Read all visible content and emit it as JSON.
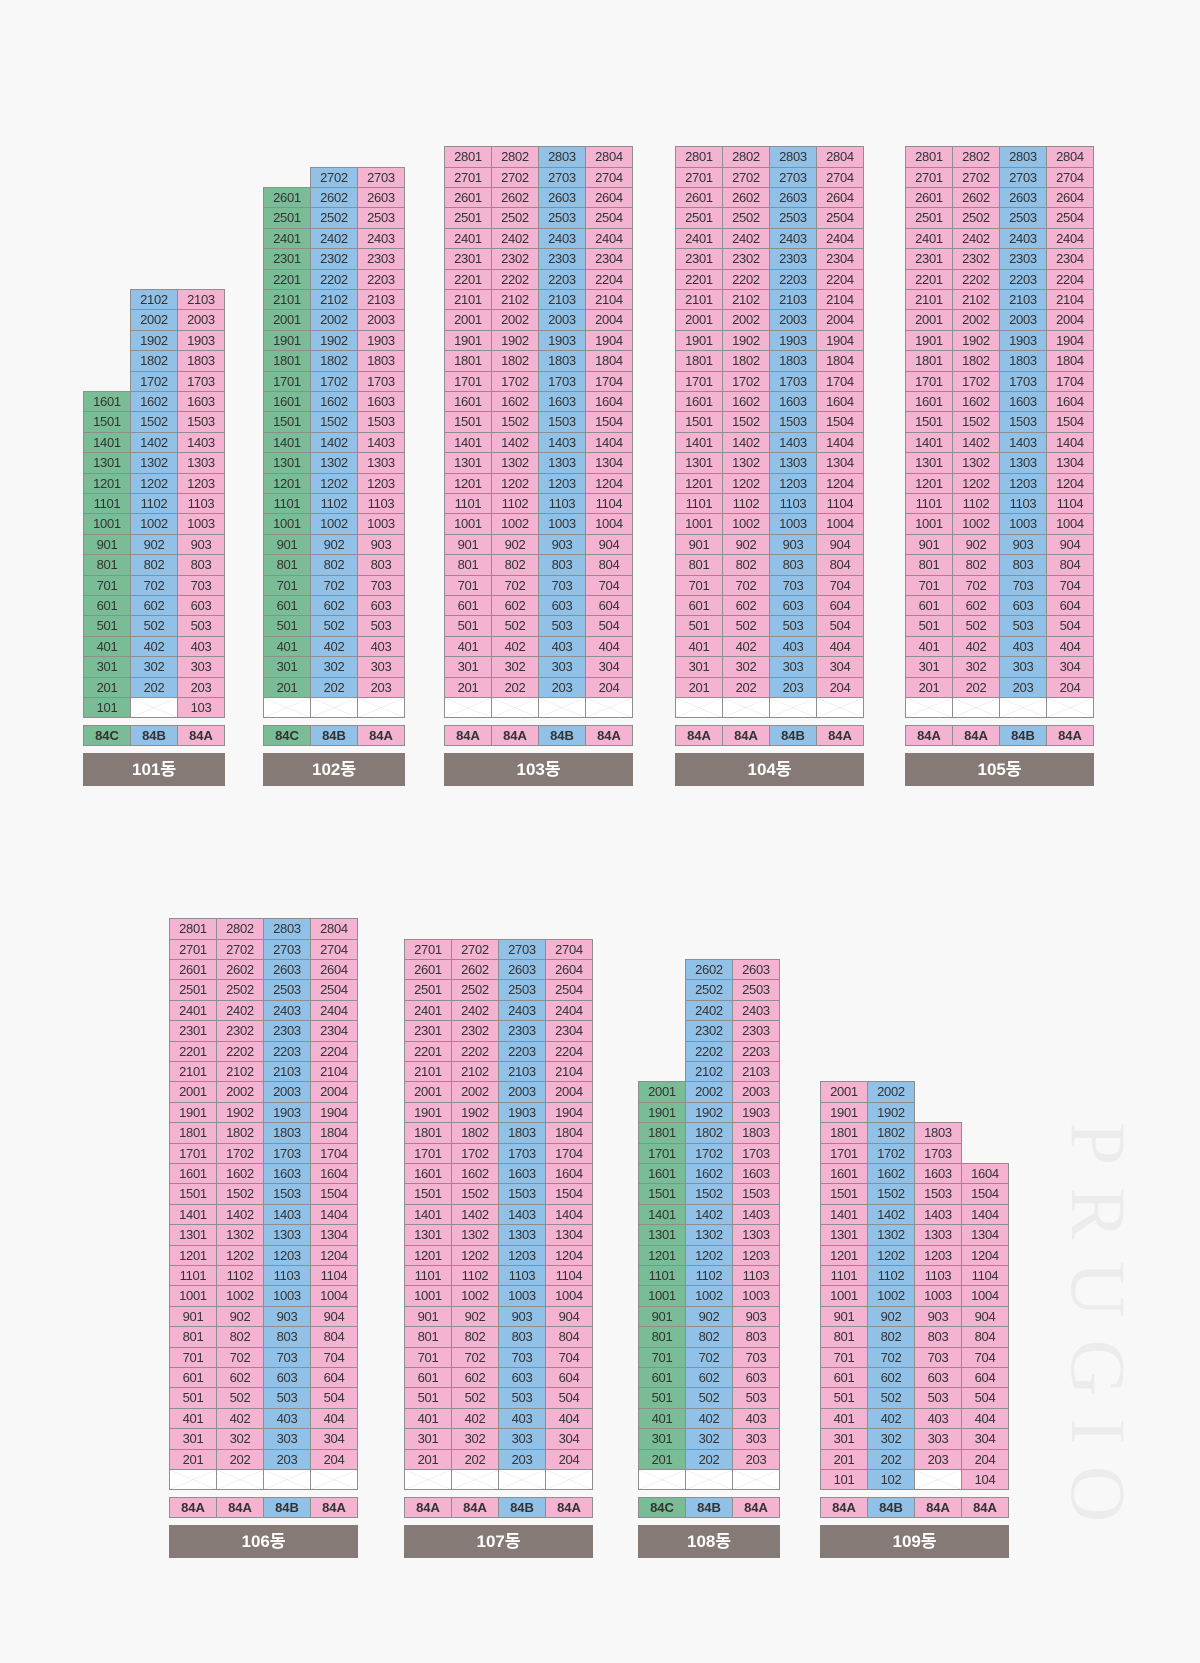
{
  "colors": {
    "84A": "#f3b3d1",
    "84B": "#92c1e7",
    "84C": "#79bc95",
    "label_bg": "#857a75",
    "background": "#f8f8f8"
  },
  "brand": "PRUGIO",
  "buildings": [
    {
      "name": "101동",
      "types": [
        "84C",
        "84B",
        "84A"
      ],
      "columns": [
        {
          "unit_suffix": "01",
          "type": "84C",
          "top_floor": 16,
          "blank_floor1": false
        },
        {
          "unit_suffix": "02",
          "type": "84B",
          "top_floor": 21,
          "blank_floor1": true
        },
        {
          "unit_suffix": "03",
          "type": "84A",
          "top_floor": 21,
          "blank_floor1": false
        }
      ]
    },
    {
      "name": "102동",
      "types": [
        "84C",
        "84B",
        "84A"
      ],
      "columns": [
        {
          "unit_suffix": "01",
          "type": "84C",
          "top_floor": 26,
          "blank_floor1": true
        },
        {
          "unit_suffix": "02",
          "type": "84B",
          "top_floor": 27,
          "blank_floor1": true
        },
        {
          "unit_suffix": "03",
          "type": "84A",
          "top_floor": 27,
          "blank_floor1": true
        }
      ]
    },
    {
      "name": "103동",
      "types": [
        "84A",
        "84A",
        "84B",
        "84A"
      ],
      "columns": [
        {
          "unit_suffix": "01",
          "type": "84A",
          "top_floor": 28,
          "blank_floor1": true
        },
        {
          "unit_suffix": "02",
          "type": "84A",
          "top_floor": 28,
          "blank_floor1": true
        },
        {
          "unit_suffix": "03",
          "type": "84B",
          "top_floor": 28,
          "blank_floor1": true
        },
        {
          "unit_suffix": "04",
          "type": "84A",
          "top_floor": 28,
          "blank_floor1": true
        }
      ]
    },
    {
      "name": "104동",
      "types": [
        "84A",
        "84A",
        "84B",
        "84A"
      ],
      "columns": [
        {
          "unit_suffix": "01",
          "type": "84A",
          "top_floor": 28,
          "blank_floor1": true
        },
        {
          "unit_suffix": "02",
          "type": "84A",
          "top_floor": 28,
          "blank_floor1": true
        },
        {
          "unit_suffix": "03",
          "type": "84B",
          "top_floor": 28,
          "blank_floor1": true
        },
        {
          "unit_suffix": "04",
          "type": "84A",
          "top_floor": 28,
          "blank_floor1": true
        }
      ]
    },
    {
      "name": "105동",
      "types": [
        "84A",
        "84A",
        "84B",
        "84A"
      ],
      "columns": [
        {
          "unit_suffix": "01",
          "type": "84A",
          "top_floor": 28,
          "blank_floor1": true
        },
        {
          "unit_suffix": "02",
          "type": "84A",
          "top_floor": 28,
          "blank_floor1": true
        },
        {
          "unit_suffix": "03",
          "type": "84B",
          "top_floor": 28,
          "blank_floor1": true
        },
        {
          "unit_suffix": "04",
          "type": "84A",
          "top_floor": 28,
          "blank_floor1": true
        }
      ]
    },
    {
      "name": "106동",
      "types": [
        "84A",
        "84A",
        "84B",
        "84A"
      ],
      "columns": [
        {
          "unit_suffix": "01",
          "type": "84A",
          "top_floor": 28,
          "blank_floor1": true
        },
        {
          "unit_suffix": "02",
          "type": "84A",
          "top_floor": 28,
          "blank_floor1": true
        },
        {
          "unit_suffix": "03",
          "type": "84B",
          "top_floor": 28,
          "blank_floor1": true
        },
        {
          "unit_suffix": "04",
          "type": "84A",
          "top_floor": 28,
          "blank_floor1": true
        }
      ]
    },
    {
      "name": "107동",
      "types": [
        "84A",
        "84A",
        "84B",
        "84A"
      ],
      "columns": [
        {
          "unit_suffix": "01",
          "type": "84A",
          "top_floor": 27,
          "blank_floor1": true
        },
        {
          "unit_suffix": "02",
          "type": "84A",
          "top_floor": 27,
          "blank_floor1": true
        },
        {
          "unit_suffix": "03",
          "type": "84B",
          "top_floor": 27,
          "blank_floor1": true
        },
        {
          "unit_suffix": "04",
          "type": "84A",
          "top_floor": 27,
          "blank_floor1": true
        }
      ]
    },
    {
      "name": "108동",
      "types": [
        "84C",
        "84B",
        "84A"
      ],
      "columns": [
        {
          "unit_suffix": "01",
          "type": "84C",
          "top_floor": 20,
          "blank_floor1": true
        },
        {
          "unit_suffix": "02",
          "type": "84B",
          "top_floor": 26,
          "blank_floor1": true
        },
        {
          "unit_suffix": "03",
          "type": "84A",
          "top_floor": 26,
          "blank_floor1": true
        }
      ]
    },
    {
      "name": "109동",
      "types": [
        "84A",
        "84B",
        "84A",
        "84A"
      ],
      "columns": [
        {
          "unit_suffix": "01",
          "type": "84A",
          "top_floor": 20,
          "blank_floor1": false
        },
        {
          "unit_suffix": "02",
          "type": "84B",
          "top_floor": 20,
          "blank_floor1": false
        },
        {
          "unit_suffix": "03",
          "type": "84A",
          "top_floor": 18,
          "blank_floor1": true
        },
        {
          "unit_suffix": "04",
          "type": "84A",
          "top_floor": 16,
          "blank_floor1": false
        }
      ]
    }
  ]
}
